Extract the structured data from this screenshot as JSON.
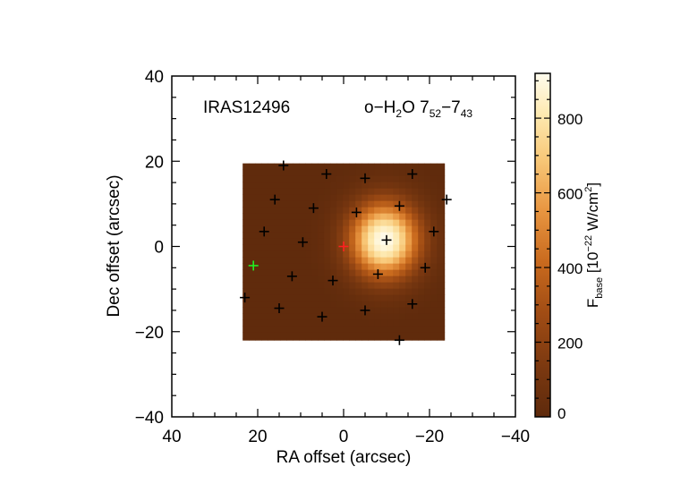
{
  "chart_data": {
    "type": "heatmap",
    "source_label": "IRAS12496",
    "line_label": {
      "prefix": "o−H",
      "sub1": "2",
      "mid": "O 7",
      "sub2": "52",
      "dash": "−7",
      "sub3": "43"
    },
    "xlabel": "RA offset (arcsec)",
    "ylabel": "Dec offset (arcsec)",
    "xlim": [
      40,
      -40
    ],
    "ylim": [
      -40,
      40
    ],
    "x_ticks": [
      40,
      20,
      0,
      -20,
      -40
    ],
    "y_ticks": [
      -40,
      -20,
      0,
      20,
      40
    ],
    "x_tick_labels": [
      "40",
      "20",
      "0",
      "−20",
      "−40"
    ],
    "y_tick_labels": [
      "−40",
      "−20",
      "0",
      "20",
      "40"
    ],
    "map_extent": {
      "ra": [
        23.5,
        -23.5
      ],
      "dec": [
        -22.0,
        19.5
      ]
    },
    "emission_peak": {
      "ra": -9.5,
      "dec": 1.5,
      "value": 920,
      "sigma_ra": 5.5,
      "sigma_dec": 6.0
    },
    "background_value": 8,
    "colorbar": {
      "range": [
        0,
        920
      ],
      "ticks": [
        0,
        200,
        400,
        600,
        800
      ],
      "tick_labels": [
        "0",
        "200",
        "400",
        "600",
        "800"
      ],
      "label": {
        "f": "F",
        "sub": "base",
        "open": " [10",
        "sup1": "−22",
        "units": " W/cm",
        "sup2": "2",
        "close": "]"
      }
    },
    "spaxels_black": [
      {
        "ra": 14,
        "dec": 19
      },
      {
        "ra": 4,
        "dec": 17
      },
      {
        "ra": -5,
        "dec": 16
      },
      {
        "ra": -16,
        "dec": 17
      },
      {
        "ra": 16,
        "dec": 11
      },
      {
        "ra": 7,
        "dec": 9
      },
      {
        "ra": -3,
        "dec": 8
      },
      {
        "ra": -13,
        "dec": 9.5
      },
      {
        "ra": -24,
        "dec": 11
      },
      {
        "ra": 18.5,
        "dec": 3.5
      },
      {
        "ra": 9.5,
        "dec": 1
      },
      {
        "ra": -10,
        "dec": 1.5
      },
      {
        "ra": -21,
        "dec": 3.5
      },
      {
        "ra": 12,
        "dec": -7
      },
      {
        "ra": 2.5,
        "dec": -8
      },
      {
        "ra": -8,
        "dec": -6.5
      },
      {
        "ra": -19,
        "dec": -5
      },
      {
        "ra": 23,
        "dec": -12
      },
      {
        "ra": 15,
        "dec": -14.5
      },
      {
        "ra": 5,
        "dec": -16.5
      },
      {
        "ra": -5,
        "dec": -15
      },
      {
        "ra": -16,
        "dec": -13.5
      },
      {
        "ra": -13,
        "dec": -22
      }
    ],
    "marker_red": {
      "ra": 0,
      "dec": 0,
      "color": "#ff2020"
    },
    "marker_green": {
      "ra": 21,
      "dec": -4.5,
      "color": "#22ee22"
    },
    "colormap": [
      "#5e2a0c",
      "#7a3810",
      "#a04c14",
      "#c96a1e",
      "#e89540",
      "#f8c878",
      "#fde9b0",
      "#fffcee"
    ],
    "grid": false
  }
}
